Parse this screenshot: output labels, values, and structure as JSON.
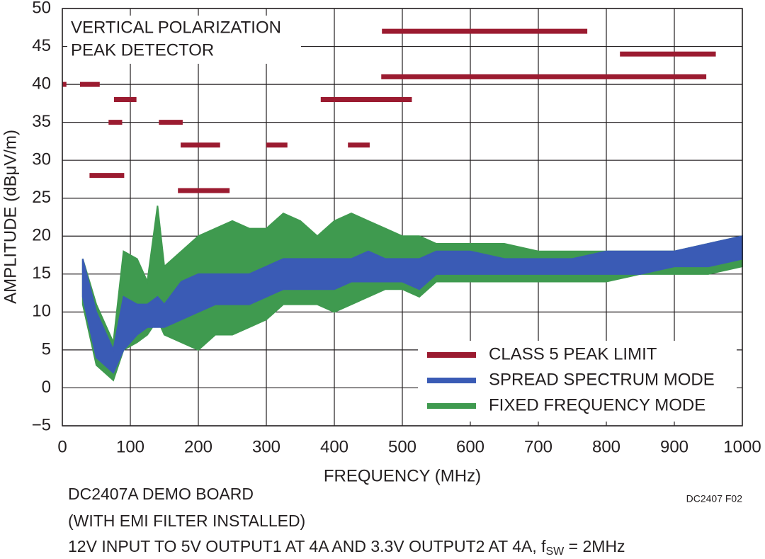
{
  "chart_data": {
    "type": "band",
    "annotation": [
      "VERTICAL POLARIZATION",
      "PEAK DETECTOR"
    ],
    "xlabel": "FREQUENCY (MHz)",
    "ylabel": "AMPLITUDE (dBμV/m)",
    "footnote": [
      "DC2407A DEMO BOARD",
      "(WITH EMI FILTER INSTALLED)"
    ],
    "footnote_last": [
      "12V INPUT TO 5V OUTPUT1 AT 4A AND 3.3V OUTPUT2 AT 4A, f",
      "SW",
      " = 2MHz"
    ],
    "figure_code": "DC2407 F02",
    "xlim": [
      0,
      1000
    ],
    "ylim": [
      -5,
      50
    ],
    "xticks": [
      0,
      100,
      200,
      300,
      400,
      500,
      600,
      700,
      800,
      900,
      1000
    ],
    "yticks": [
      {
        "value": -5,
        "label": "−5"
      },
      0,
      5,
      10,
      15,
      20,
      25,
      30,
      35,
      40,
      45,
      50
    ],
    "grid": true,
    "legend": "lower right",
    "limit": {
      "name": "CLASS 5 PEAK LIMIT",
      "color": "#9b1b30",
      "segments": [
        {
          "x": [
            0,
            6
          ],
          "value": 40
        },
        {
          "x": [
            26,
            55
          ],
          "value": 40
        },
        {
          "x": [
            40,
            91
          ],
          "value": 28
        },
        {
          "x": [
            68,
            88
          ],
          "value": 35
        },
        {
          "x": [
            76,
            109
          ],
          "value": 38
        },
        {
          "x": [
            142,
            177
          ],
          "value": 35
        },
        {
          "x": [
            174,
            232
          ],
          "value": 32
        },
        {
          "x": [
            170,
            246
          ],
          "value": 26
        },
        {
          "x": [
            300,
            331
          ],
          "value": 32
        },
        {
          "x": [
            420,
            452
          ],
          "value": 32
        },
        {
          "x": [
            380,
            514
          ],
          "value": 38
        },
        {
          "x": [
            469,
            947
          ],
          "value": 41
        },
        {
          "x": [
            470,
            772
          ],
          "value": 47
        },
        {
          "x": [
            820,
            961
          ],
          "value": 44
        }
      ]
    },
    "x": [
      30,
      50,
      75,
      90,
      110,
      125,
      140,
      150,
      175,
      200,
      225,
      250,
      275,
      300,
      325,
      350,
      375,
      400,
      425,
      450,
      475,
      500,
      525,
      550,
      575,
      600,
      650,
      700,
      750,
      800,
      850,
      900,
      950,
      1000
    ],
    "series": [
      {
        "name": "FIXED FREQUENCY MODE",
        "color": "#3f9a4f",
        "low": [
          11,
          3,
          1,
          5,
          6,
          7,
          9,
          7,
          6,
          5,
          7,
          7,
          8,
          9,
          11,
          11,
          11,
          10,
          11,
          12,
          13,
          13,
          12,
          14,
          14,
          14,
          14,
          14,
          14,
          14,
          15,
          15,
          15,
          16
        ],
        "high": [
          17,
          11,
          6,
          18,
          17,
          14,
          24,
          16,
          18,
          20,
          21,
          22,
          21,
          21,
          23,
          22,
          20,
          22,
          23,
          22,
          21,
          20,
          20,
          19,
          19,
          19,
          19,
          18,
          18,
          18,
          18,
          18,
          19,
          20
        ]
      },
      {
        "name": "SPREAD SPECTRUM MODE",
        "color": "#3a5bb5",
        "low": [
          12,
          4,
          2,
          5,
          7,
          8,
          8,
          8,
          9,
          10,
          11,
          11,
          11,
          12,
          13,
          13,
          13,
          13,
          14,
          14,
          14,
          14,
          13,
          15,
          15,
          15,
          15,
          15,
          15,
          15,
          15,
          16,
          16,
          17
        ],
        "high": [
          17,
          10,
          5,
          12,
          11,
          11,
          12,
          11,
          14,
          15,
          15,
          15,
          15,
          16,
          17,
          17,
          17,
          17,
          17,
          18,
          17,
          17,
          17,
          18,
          18,
          18,
          17,
          17,
          17,
          18,
          18,
          18,
          19,
          20
        ]
      }
    ]
  }
}
